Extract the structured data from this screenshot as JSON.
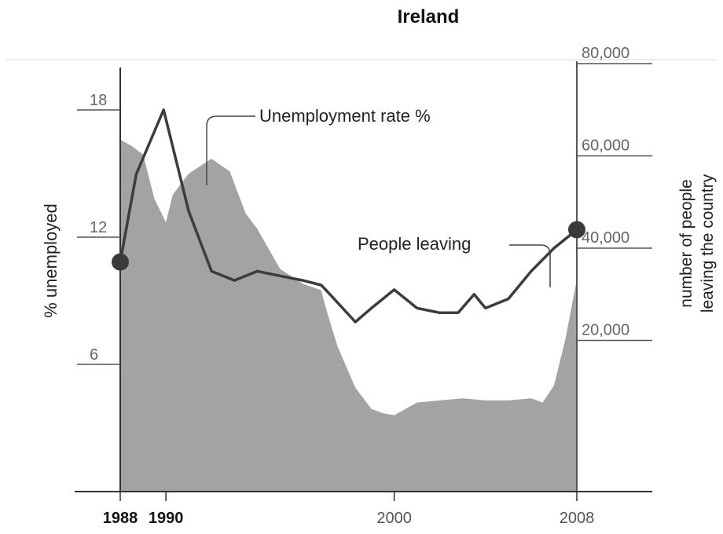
{
  "chart_data": {
    "type": "area",
    "title": "Ireland",
    "x_ticks": [
      1988,
      1990,
      2000,
      2008
    ],
    "x_tick_labels": [
      "1988",
      "1990",
      "2000",
      "2008"
    ],
    "xlim": [
      1988,
      2008
    ],
    "left_axis": {
      "label": "% unemployed",
      "ticks": [
        6,
        12,
        18
      ],
      "tick_labels": [
        "6",
        "12",
        "18"
      ],
      "ylim": [
        0,
        20.7
      ]
    },
    "right_axis": {
      "label_lines": [
        "number of people",
        "leaving the country"
      ],
      "ticks": [
        20000,
        40000,
        60000,
        80000
      ],
      "tick_labels": [
        "20,000",
        "40,000",
        "60,000",
        "80,000"
      ],
      "ylim": [
        -3000,
        86000
      ]
    },
    "series": [
      {
        "name": "Unemployment rate %",
        "type": "area",
        "axis": "left",
        "color": "#a3a3a3",
        "x": [
          1988,
          1988.5,
          1989,
          1989.5,
          1990,
          1990.3,
          1991,
          1992,
          1992.8,
          1993.5,
          1994,
          1995,
          1996,
          1996.8,
          1997,
          1997.5,
          1998.3,
          1999,
          1999.5,
          2000,
          2001,
          2002,
          2003,
          2004,
          2005,
          2006,
          2006.5,
          2007,
          2007.5,
          2008
        ],
        "y": [
          16.6,
          16.3,
          15.9,
          13.8,
          12.7,
          14.0,
          15.0,
          15.7,
          15.1,
          13.1,
          12.4,
          10.5,
          9.8,
          9.5,
          8.7,
          6.9,
          4.9,
          3.9,
          3.7,
          3.6,
          4.2,
          4.3,
          4.4,
          4.3,
          4.3,
          4.4,
          4.2,
          5.0,
          7.2,
          10.0
        ]
      },
      {
        "name": "People leaving",
        "type": "line",
        "axis": "right",
        "color": "#3c3c3c",
        "x": [
          1988,
          1988.7,
          1989.9,
          1991,
          1992,
          1993,
          1994,
          1995,
          1996,
          1996.8,
          1997,
          1998.3,
          1999,
          2000,
          2001,
          2002,
          2002.8,
          2003.5,
          2004,
          2005,
          2006,
          2007,
          2007.5,
          2008
        ],
        "y": [
          37000,
          56000,
          70000,
          48000,
          35000,
          33000,
          35000,
          34000,
          33000,
          32000,
          31000,
          24000,
          27000,
          31000,
          27000,
          26000,
          26000,
          30000,
          27000,
          29000,
          35000,
          40000,
          42000,
          44000
        ]
      }
    ],
    "annotations": [
      {
        "text": "Unemployment rate %"
      },
      {
        "text": "People leaving"
      }
    ],
    "grid": false
  }
}
